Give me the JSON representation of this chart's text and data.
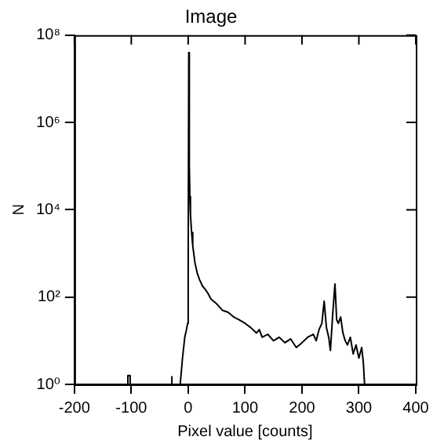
{
  "chart_data": {
    "type": "line",
    "title": "Image",
    "xlabel": "Pixel value [counts]",
    "ylabel": "N",
    "log": "y",
    "grid": false,
    "legend": false,
    "marker": "none",
    "line_style": "solid",
    "xlim": [
      -200,
      400
    ],
    "xticks": [
      -200,
      -100,
      0,
      100,
      200,
      300,
      400
    ],
    "ylim": [
      1,
      100000000
    ],
    "yticks": [
      {
        "value": 1,
        "label": "10⁰"
      },
      {
        "value": 100,
        "label": "10²"
      },
      {
        "value": 10000,
        "label": "10⁴"
      },
      {
        "value": 1000000,
        "label": "10⁶"
      },
      {
        "value": 100000000,
        "label": "10⁸"
      }
    ],
    "series": [
      {
        "color": "#000000",
        "x": [
          -200,
          -106,
          -106,
          -102,
          -102,
          -30,
          -30,
          -28,
          -28,
          -14,
          -10,
          -6,
          -3,
          -1,
          0,
          1,
          2,
          3,
          4,
          6,
          8,
          12,
          16,
          20,
          25,
          30,
          35,
          40,
          50,
          60,
          70,
          80,
          90,
          100,
          110,
          120,
          125,
          130,
          140,
          150,
          160,
          170,
          180,
          190,
          200,
          210,
          220,
          225,
          230,
          235,
          239,
          243,
          247,
          250,
          254,
          258,
          261,
          264,
          268,
          272,
          276,
          280,
          285,
          290,
          295,
          300,
          305,
          308,
          310
        ],
        "values": [
          1,
          1,
          1.6,
          1.6,
          1,
          1,
          1.5,
          1.5,
          1,
          1,
          4,
          12,
          18,
          25,
          300,
          40000000,
          100000,
          20000,
          8000,
          3000,
          1500,
          600,
          350,
          250,
          180,
          150,
          120,
          90,
          70,
          50,
          45,
          35,
          30,
          25,
          20,
          15,
          18,
          12,
          14,
          10,
          12,
          9,
          11,
          7,
          9,
          12,
          14,
          10,
          18,
          25,
          80,
          20,
          12,
          6,
          40,
          200,
          30,
          25,
          35,
          15,
          10,
          8,
          12,
          5,
          8,
          4,
          7,
          3,
          1
        ]
      }
    ]
  }
}
